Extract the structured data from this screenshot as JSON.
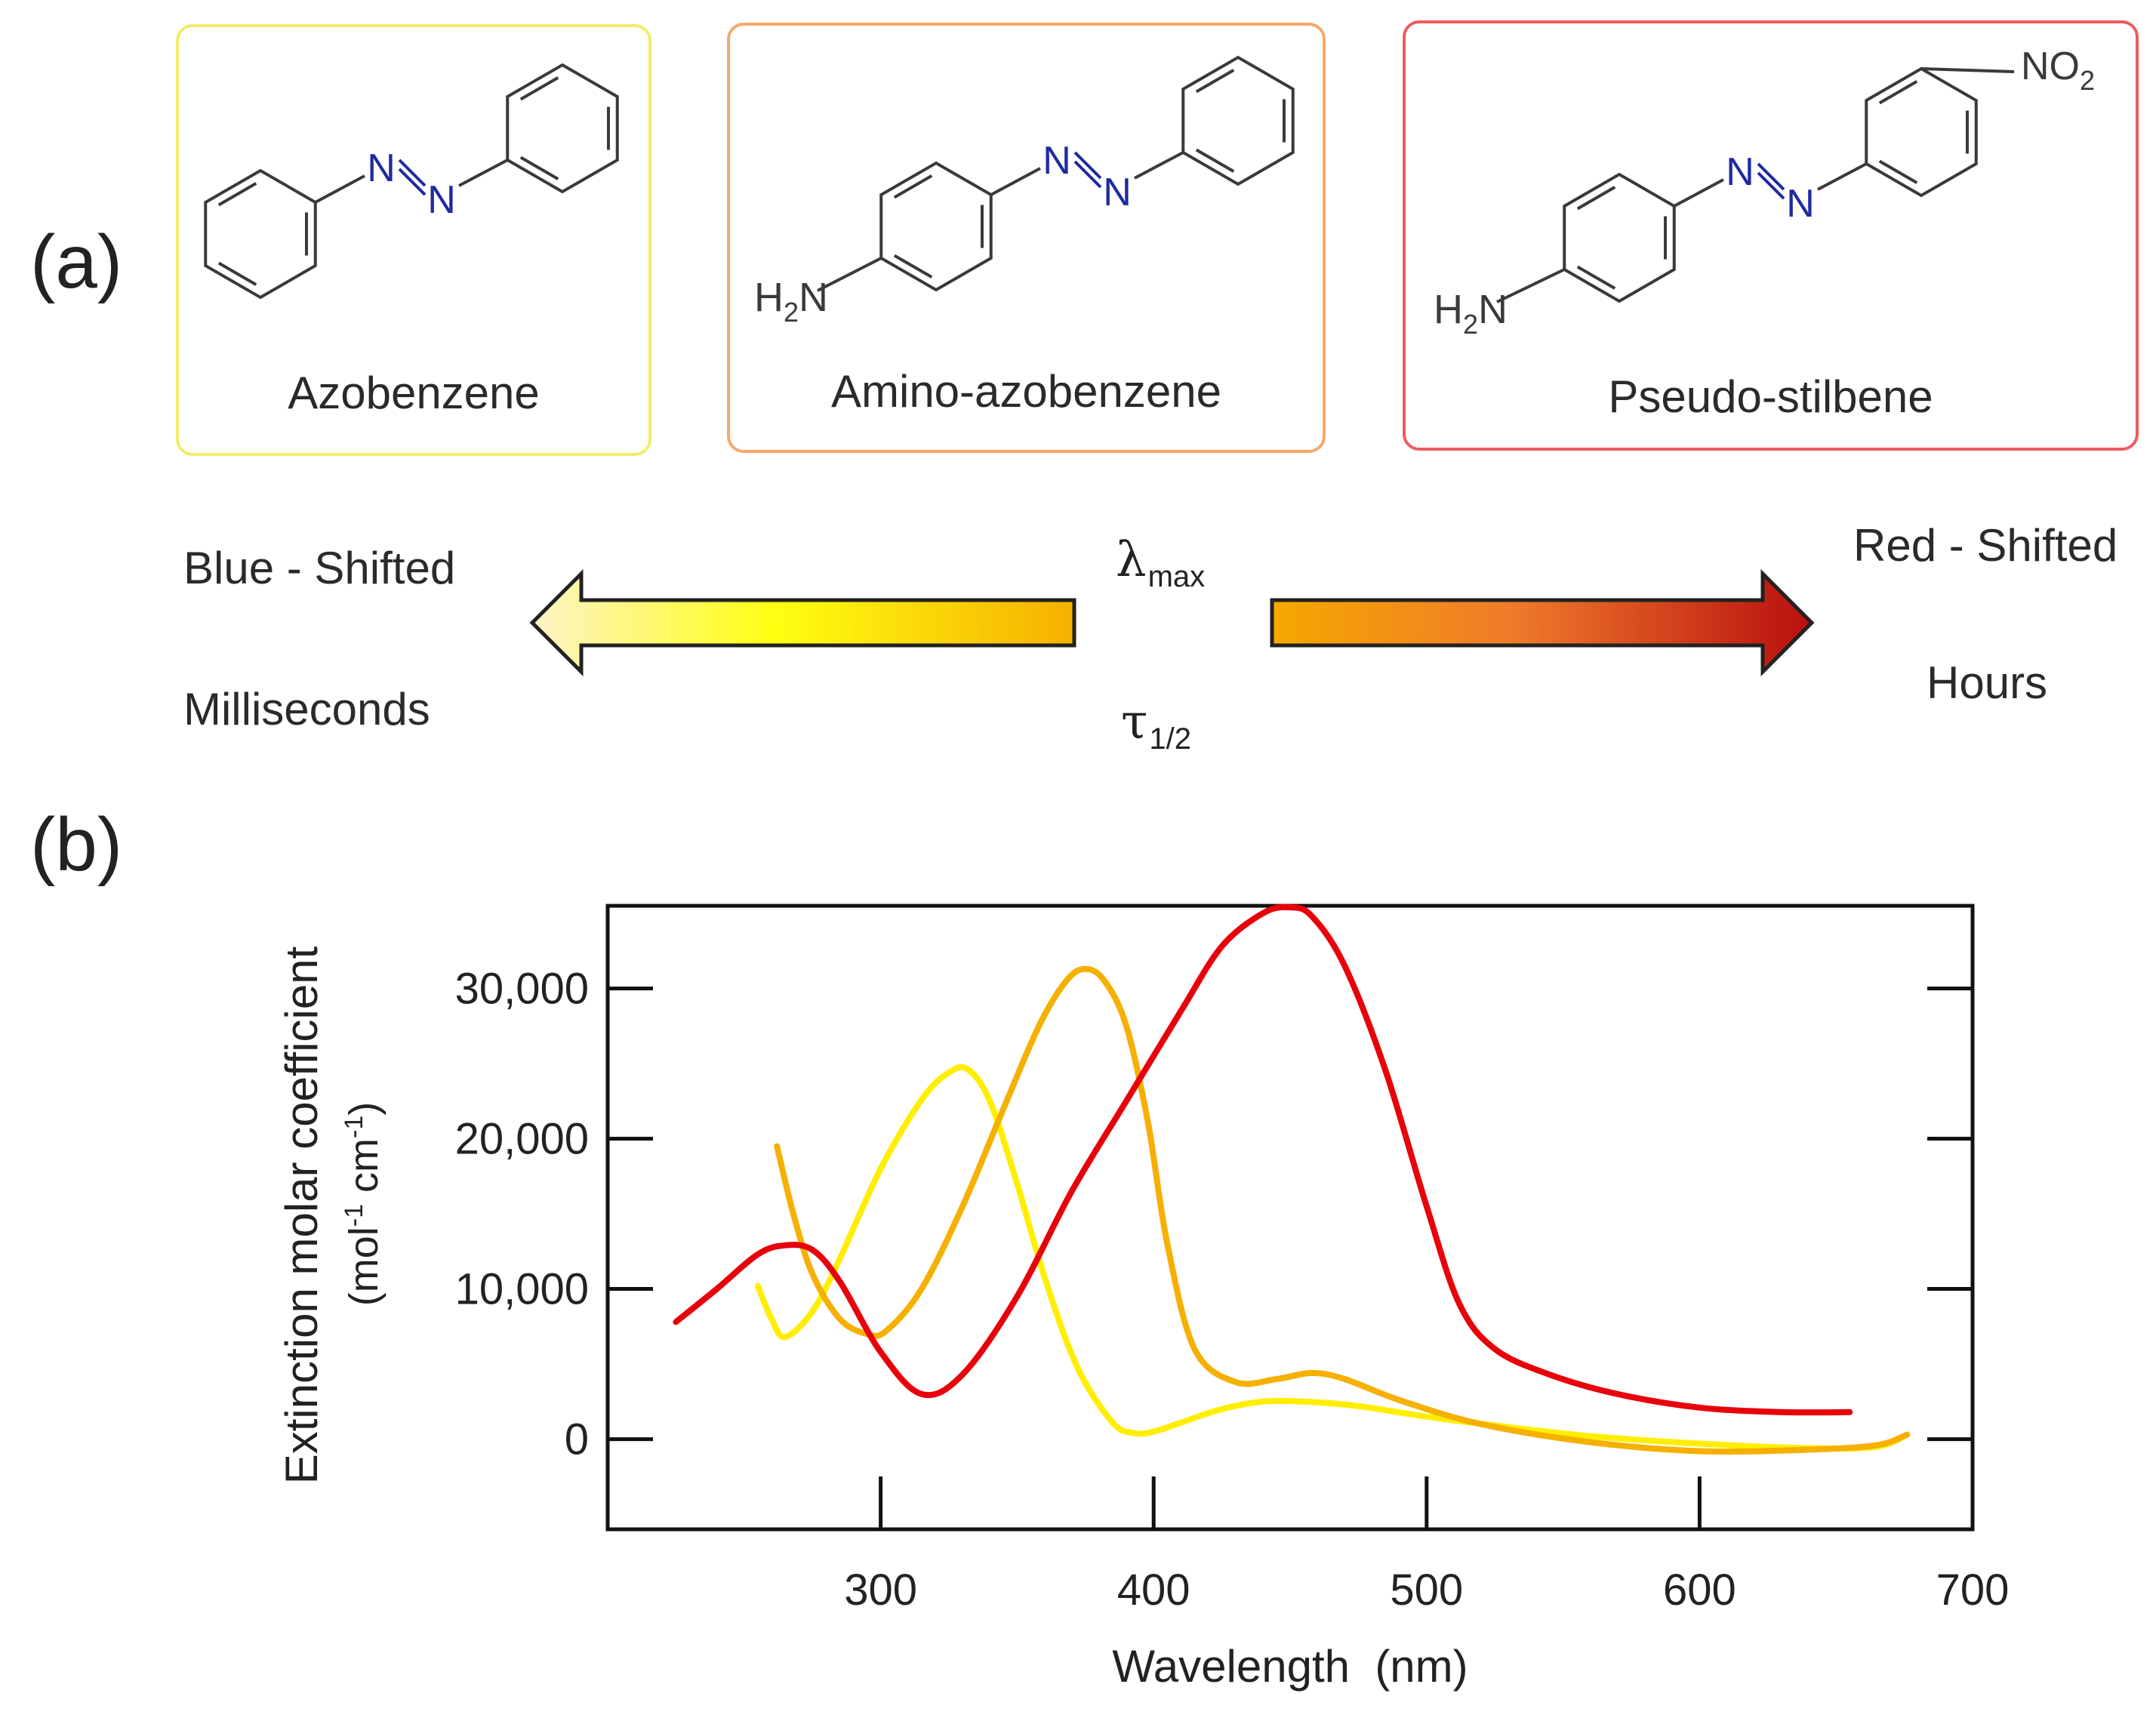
{
  "panel_a": {
    "label": "(a)",
    "compounds": [
      {
        "name": "Azobenzene",
        "border_color": "#f2ec6b"
      },
      {
        "name": "Amino-azobenzene",
        "border_color": "#f5a96a"
      },
      {
        "name": "Pseudo-stilbene",
        "border_color": "#ee5b60"
      }
    ],
    "atoms": {
      "n": "N",
      "h2n_h": "H",
      "h2n_sub": "2",
      "h2n_n": "N",
      "no2_no": "NO",
      "no2_sub": "2"
    },
    "left_text": {
      "top": "Blue - Shifted",
      "bottom": "Milliseconds"
    },
    "right_text": {
      "top": "Red - Shifted",
      "bottom": "Hours"
    },
    "lambda": {
      "symbol": "λ",
      "sub": "max"
    },
    "tau": {
      "symbol": "τ",
      "sub": "1/2"
    },
    "colors": {
      "bond": "#3a3a3a",
      "nitrogen": "#1e2a9e",
      "arrow_left_start": "#fdf3c8",
      "arrow_left_mid": "#ffff10",
      "arrow_left_end": "#f6b000",
      "arrow_right_start": "#f6a800",
      "arrow_right_mid": "#ef7a2a",
      "arrow_right_end": "#b90f0f"
    }
  },
  "panel_b": {
    "label": "(b)"
  },
  "chart_data": {
    "type": "line",
    "xlabel": "Wavelength  (nm)",
    "ylabel_line1": "Extinction molar coefficient",
    "ylabel_line2_parts": [
      "(mol",
      "-1",
      " cm",
      "-1",
      ")"
    ],
    "xlim": [
      200,
      700
    ],
    "ylim": [
      -6000,
      35500
    ],
    "xticks": [
      300,
      400,
      500,
      600,
      700
    ],
    "yticks": [
      0,
      10000,
      20000,
      30000
    ],
    "ytick_labels": [
      "0",
      "10,000",
      "20,000",
      "30,000"
    ],
    "series": [
      {
        "name": "Azobenzene",
        "color": "#ffee00",
        "x": [
          255,
          260,
          265,
          275,
          285,
          300,
          315,
          325,
          332,
          340,
          350,
          360,
          372,
          385,
          393,
          400,
          410,
          425,
          440,
          455,
          475,
          500,
          530,
          560,
          600,
          640,
          665,
          676
        ],
        "y": [
          10200,
          8000,
          6800,
          8500,
          12000,
          18000,
          22600,
          24400,
          24600,
          22500,
          17000,
          10800,
          4800,
          1100,
          400,
          500,
          1100,
          2000,
          2500,
          2500,
          2200,
          1500,
          800,
          200,
          -300,
          -600,
          -500,
          300
        ]
      },
      {
        "name": "Amino-azobenzene",
        "color": "#f5b000",
        "x": [
          262,
          268,
          275,
          285,
          295,
          302,
          315,
          330,
          345,
          358,
          368,
          375,
          382,
          390,
          398,
          405,
          415,
          430,
          445,
          458,
          470,
          490,
          520,
          560,
          600,
          640,
          665,
          676
        ],
        "y": [
          19500,
          15000,
          11000,
          8000,
          7000,
          7200,
          10000,
          15500,
          22000,
          27500,
          30500,
          31300,
          30500,
          27500,
          21000,
          13000,
          6000,
          3800,
          4000,
          4400,
          4000,
          2600,
          1000,
          -200,
          -800,
          -700,
          -400,
          300
        ]
      },
      {
        "name": "Pseudo-stilbene",
        "color": "#e8000a",
        "x": [
          225,
          240,
          255,
          265,
          275,
          285,
          300,
          315,
          330,
          350,
          370,
          390,
          410,
          425,
          440,
          450,
          458,
          470,
          485,
          500,
          512,
          525,
          545,
          570,
          600,
          630,
          655
        ],
        "y": [
          7800,
          10000,
          12300,
          12900,
          12600,
          10500,
          5800,
          3000,
          4300,
          9500,
          16500,
          22500,
          28500,
          32800,
          35000,
          35400,
          34800,
          31500,
          24500,
          15500,
          9000,
          6000,
          4300,
          3000,
          2100,
          1800,
          1800
        ]
      }
    ]
  }
}
